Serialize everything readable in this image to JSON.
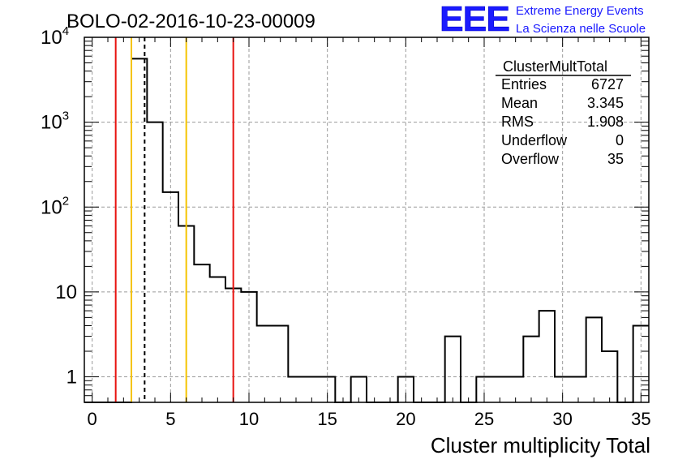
{
  "title": "BOLO-02-2016-10-23-00009",
  "logo": {
    "mark": "EEE",
    "line1": "Extreme Energy Events",
    "line2": "La Scienza nelle Scuole",
    "color": "#1a1aff"
  },
  "colors": {
    "red": "#e8120f",
    "yellow": "#f5c400",
    "grid": "#9a9a9a",
    "line": "#000000"
  },
  "chart_data": {
    "type": "histogram",
    "title": "BOLO-02-2016-10-23-00009",
    "xlabel": "Cluster multiplicity Total",
    "ylabel": "",
    "xlim": [
      -0.5,
      35.5
    ],
    "ylim": [
      0.5,
      10000
    ],
    "log_y": true,
    "grid": true,
    "bin_width": 1,
    "x_ticks": [
      "0",
      "5",
      "10",
      "15",
      "20",
      "25",
      "30",
      "35"
    ],
    "y_ticks": [
      {
        "value": 1,
        "base": "1",
        "exp": ""
      },
      {
        "value": 10,
        "base": "10",
        "exp": ""
      },
      {
        "value": 100,
        "base": "10",
        "exp": "2"
      },
      {
        "value": 1000,
        "base": "10",
        "exp": "3"
      },
      {
        "value": 10000,
        "base": "10",
        "exp": "4"
      }
    ],
    "bins": [
      {
        "x": 0,
        "count": 0
      },
      {
        "x": 1,
        "count": 0
      },
      {
        "x": 2,
        "count": 0
      },
      {
        "x": 3,
        "count": 5600
      },
      {
        "x": 4,
        "count": 1000
      },
      {
        "x": 5,
        "count": 150
      },
      {
        "x": 6,
        "count": 60
      },
      {
        "x": 7,
        "count": 21
      },
      {
        "x": 8,
        "count": 15
      },
      {
        "x": 9,
        "count": 11
      },
      {
        "x": 10,
        "count": 10
      },
      {
        "x": 11,
        "count": 4
      },
      {
        "x": 12,
        "count": 4
      },
      {
        "x": 13,
        "count": 1
      },
      {
        "x": 14,
        "count": 1
      },
      {
        "x": 15,
        "count": 1
      },
      {
        "x": 16,
        "count": 0
      },
      {
        "x": 17,
        "count": 1
      },
      {
        "x": 18,
        "count": 0
      },
      {
        "x": 19,
        "count": 0
      },
      {
        "x": 20,
        "count": 1
      },
      {
        "x": 21,
        "count": 0
      },
      {
        "x": 22,
        "count": 0
      },
      {
        "x": 23,
        "count": 3
      },
      {
        "x": 24,
        "count": 0
      },
      {
        "x": 25,
        "count": 1
      },
      {
        "x": 26,
        "count": 1
      },
      {
        "x": 27,
        "count": 1
      },
      {
        "x": 28,
        "count": 3
      },
      {
        "x": 29,
        "count": 6
      },
      {
        "x": 30,
        "count": 1
      },
      {
        "x": 31,
        "count": 1
      },
      {
        "x": 32,
        "count": 5
      },
      {
        "x": 33,
        "count": 2
      },
      {
        "x": 34,
        "count": 0
      },
      {
        "x": 35,
        "count": 4
      }
    ],
    "vertical_lines": [
      {
        "x": 1.5,
        "color": "#e8120f",
        "style": "solid"
      },
      {
        "x": 2.5,
        "color": "#f5c400",
        "style": "solid"
      },
      {
        "x": 3.345,
        "color": "#000000",
        "style": "dashed"
      },
      {
        "x": 6.0,
        "color": "#f5c400",
        "style": "solid"
      },
      {
        "x": 9.0,
        "color": "#e8120f",
        "style": "solid"
      }
    ],
    "stats_box": {
      "title": "ClusterMultTotal",
      "rows": [
        {
          "label": "Entries",
          "value": "6727"
        },
        {
          "label": "Mean",
          "value": "3.345"
        },
        {
          "label": "RMS",
          "value": "1.908"
        },
        {
          "label": "Underflow",
          "value": "0"
        },
        {
          "label": "Overflow",
          "value": "35"
        }
      ]
    }
  }
}
